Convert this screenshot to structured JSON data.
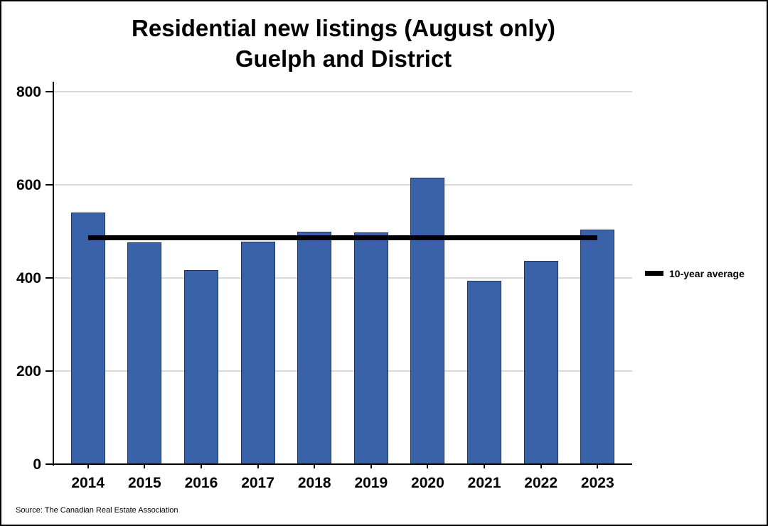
{
  "title": {
    "line1": "Residential new listings (August only)",
    "line2": "Guelph and District"
  },
  "legend": {
    "label": "10-year average"
  },
  "source": "Source: The Canadian Real Estate Association",
  "colors": {
    "bar_fill": "#3A62A9",
    "bar_border": "#1E3356",
    "gridline": "#D9D9D9",
    "axis": "#000000",
    "average_line": "#000000",
    "background": "#FFFFFF",
    "text": "#000000"
  },
  "chart_data": {
    "type": "bar",
    "title": "Residential new listings (August only) Guelph and District",
    "categories": [
      "2014",
      "2015",
      "2016",
      "2017",
      "2018",
      "2019",
      "2020",
      "2021",
      "2022",
      "2023"
    ],
    "values": [
      541,
      477,
      417,
      478,
      499,
      498,
      615,
      394,
      437,
      504
    ],
    "average_line": {
      "label": "10-year average",
      "value": 486
    },
    "xlabel": "",
    "ylabel": "",
    "ylim": [
      0,
      800
    ],
    "yticks": [
      0,
      200,
      400,
      600,
      800
    ],
    "grid": true,
    "legend_position": "right"
  }
}
